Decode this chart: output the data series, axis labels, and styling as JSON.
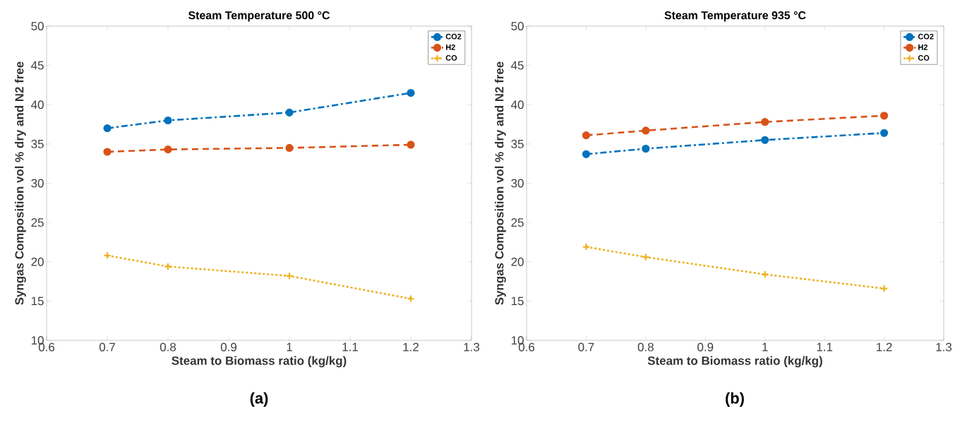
{
  "chart_data": [
    {
      "type": "line",
      "title": "Steam Temperature 500 °C",
      "xlabel": "Steam to Biomass ratio (kg/kg)",
      "ylabel": "Syngas Composition vol % dry and N2 free",
      "x": [
        0.7,
        0.8,
        1.0,
        1.2
      ],
      "series": [
        {
          "name": "CO2",
          "color": "#0072bd",
          "values": [
            37.0,
            38.0,
            39.0,
            41.5
          ],
          "marker": "circle",
          "line_style": "dashdot"
        },
        {
          "name": "H2",
          "color": "#d95319",
          "values": [
            34.0,
            34.3,
            34.5,
            34.9
          ],
          "marker": "circle",
          "line_style": "dashed"
        },
        {
          "name": "CO",
          "color": "#edb120",
          "values": [
            20.8,
            19.4,
            18.2,
            15.3
          ],
          "marker": "cross",
          "line_style": "dotted"
        }
      ],
      "xlim": [
        0.6,
        1.3
      ],
      "xticks": [
        0.6,
        0.7,
        0.8,
        0.9,
        1,
        1.1,
        1.2,
        1.3
      ],
      "ylim": [
        10,
        50
      ],
      "yticks": [
        10,
        15,
        20,
        25,
        30,
        35,
        40,
        45,
        50
      ],
      "grid": false,
      "legend": "top right",
      "annotations": [
        "(a)"
      ]
    },
    {
      "type": "line",
      "title": "Steam Temperature 935 °C",
      "xlabel": "Steam to Biomass ratio (kg/kg)",
      "ylabel": "Syngas Composition vol % dry and N2 free",
      "x": [
        0.7,
        0.8,
        1.0,
        1.2
      ],
      "series": [
        {
          "name": "CO2",
          "color": "#0072bd",
          "values": [
            33.7,
            34.4,
            35.5,
            36.4
          ],
          "marker": "circle",
          "line_style": "dashdot"
        },
        {
          "name": "H2",
          "color": "#d95319",
          "values": [
            36.1,
            36.7,
            37.8,
            38.6
          ],
          "marker": "circle",
          "line_style": "dashed"
        },
        {
          "name": "CO",
          "color": "#edb120",
          "values": [
            21.9,
            20.6,
            18.4,
            16.6
          ],
          "marker": "cross",
          "line_style": "dotted"
        }
      ],
      "xlim": [
        0.6,
        1.3
      ],
      "xticks": [
        0.6,
        0.7,
        0.8,
        0.9,
        1,
        1.1,
        1.2,
        1.3
      ],
      "ylim": [
        10,
        50
      ],
      "yticks": [
        10,
        15,
        20,
        25,
        30,
        35,
        40,
        45,
        50
      ],
      "grid": false,
      "legend": "top right",
      "annotations": [
        "(b)"
      ]
    }
  ]
}
